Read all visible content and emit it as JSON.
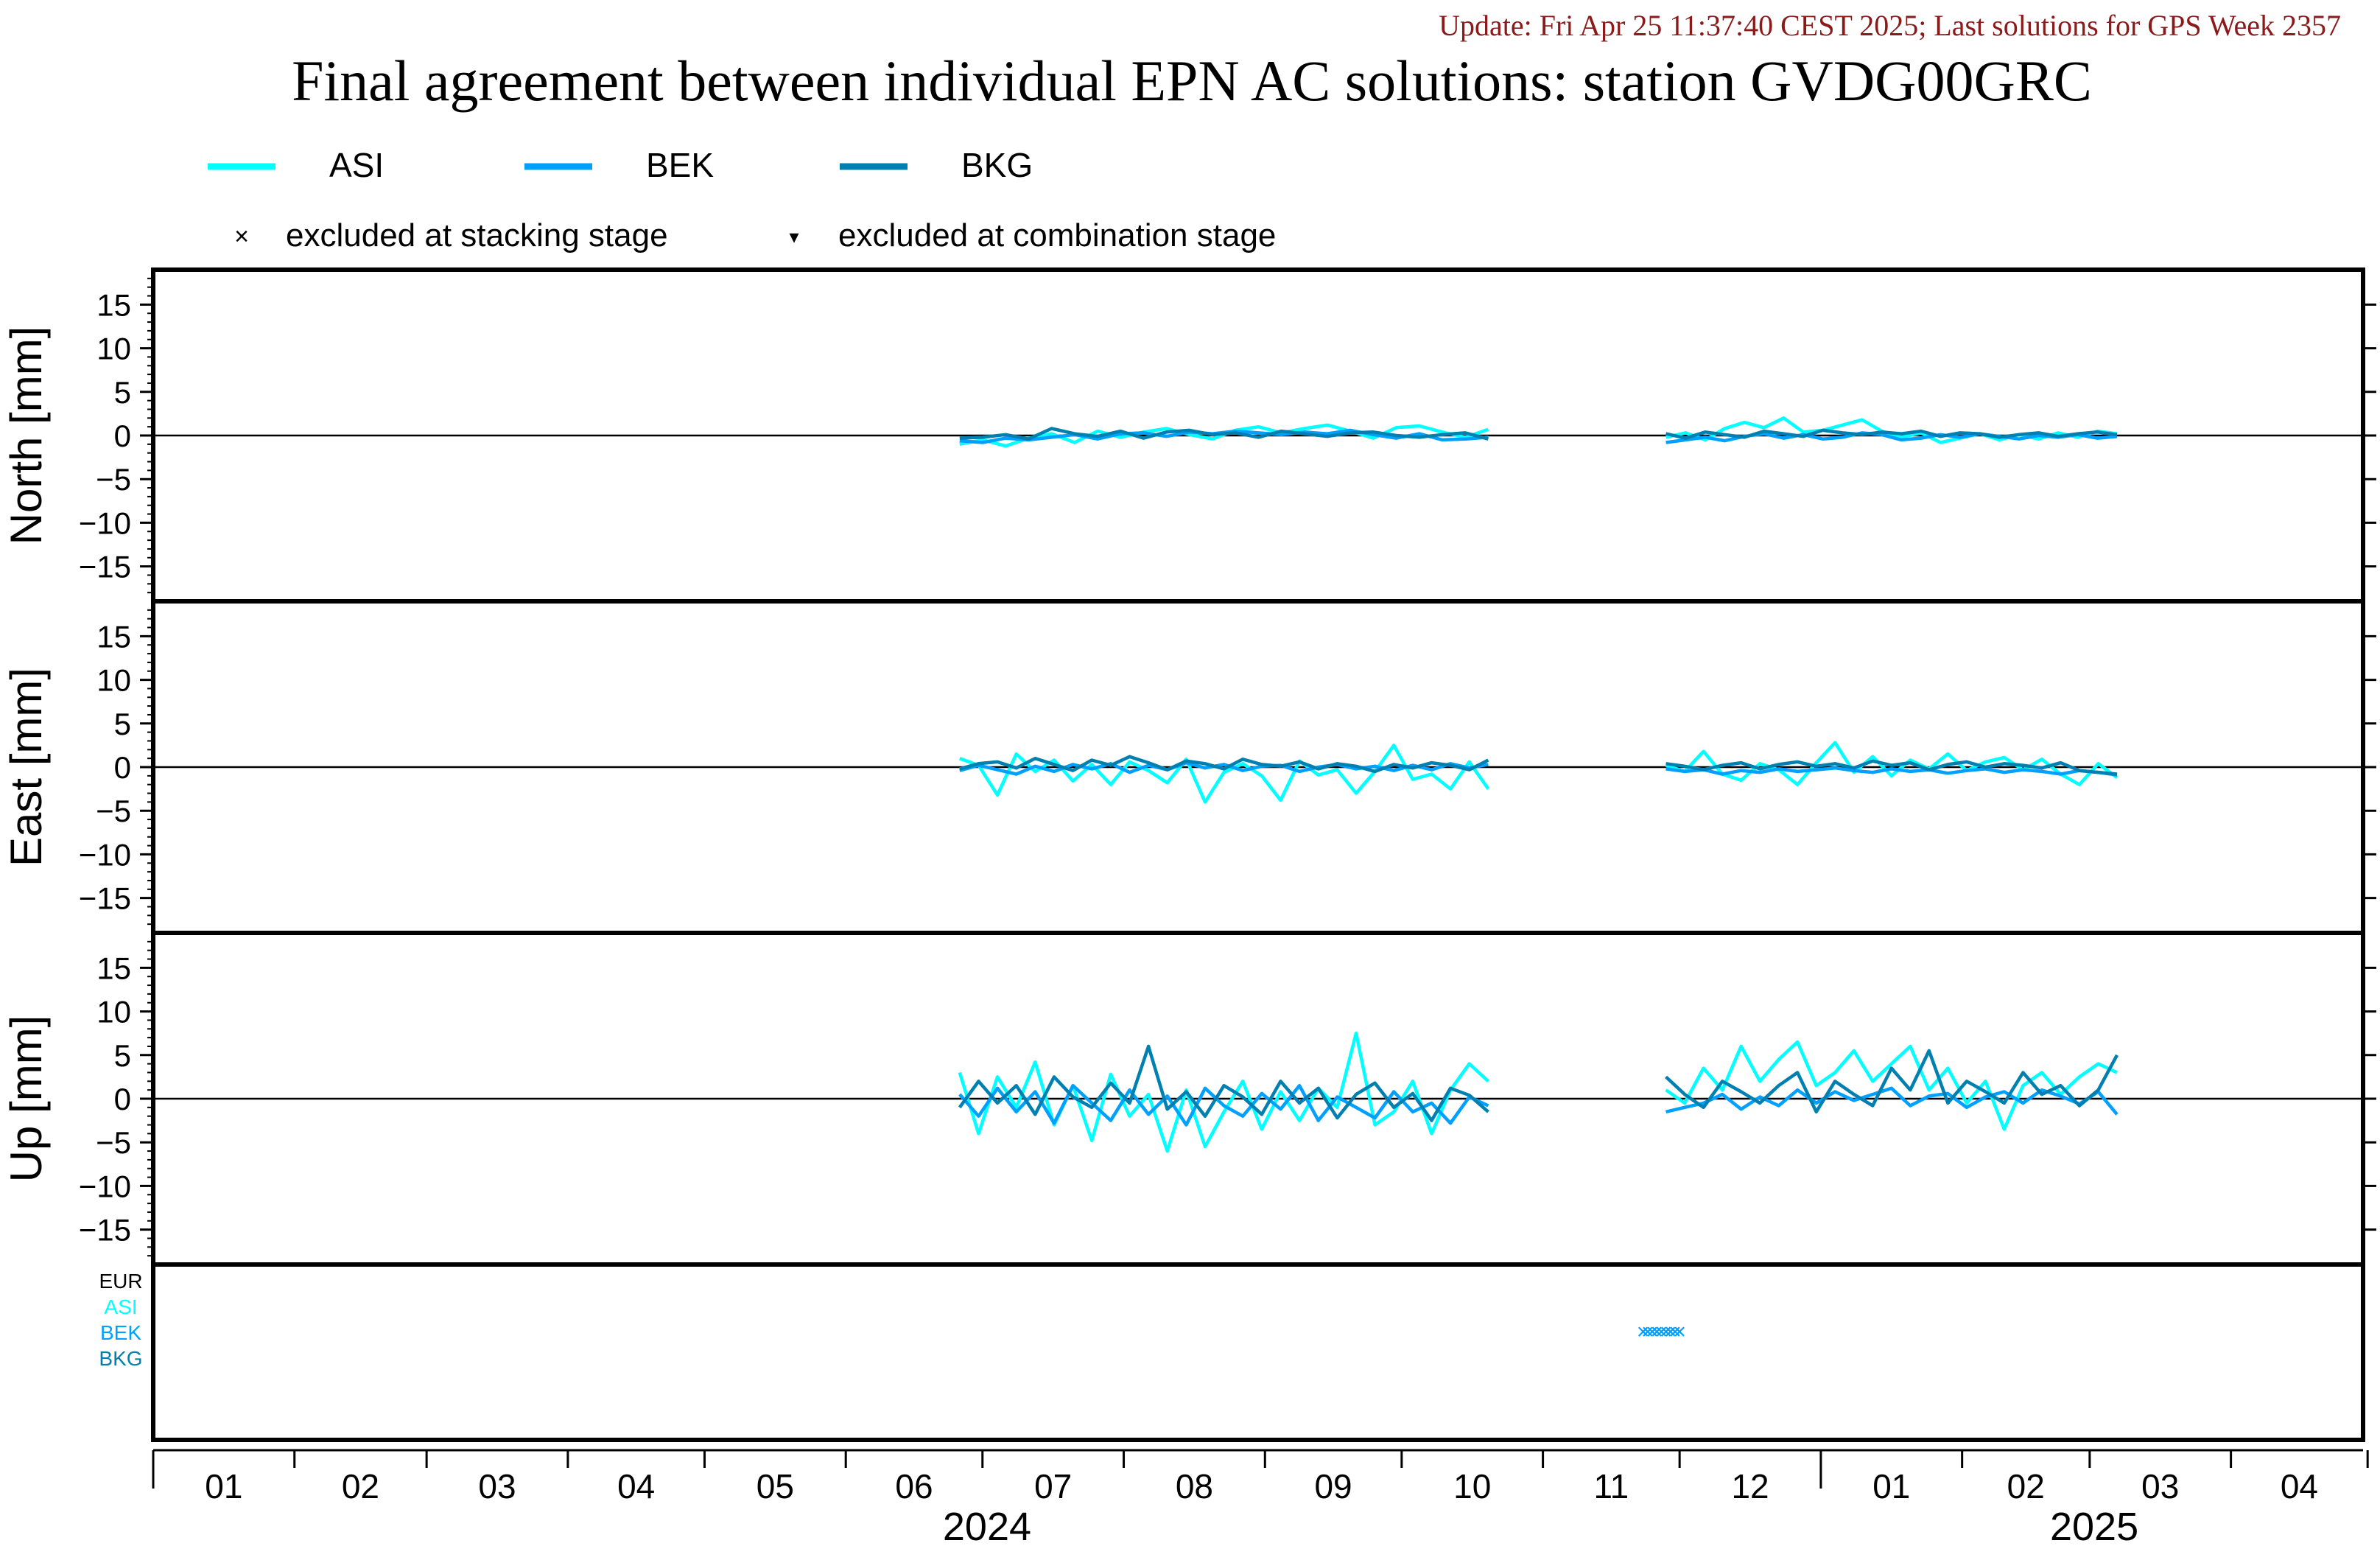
{
  "header": {
    "update_text": "Update: Fri Apr 25 11:37:40 CEST 2025; Last solutions for GPS Week 2357",
    "title": "Final agreement between individual EPN AC solutions: station GVDG00GRC"
  },
  "legend": {
    "series": [
      {
        "name": "ASI",
        "color": "#00ffff"
      },
      {
        "name": "BEK",
        "color": "#00a0ff"
      },
      {
        "name": "BKG",
        "color": "#0080b0"
      }
    ],
    "markers": [
      {
        "symbol": "×",
        "label": "excluded at stacking stage"
      },
      {
        "symbol": "▾",
        "label": "excluded at combination stage"
      }
    ]
  },
  "colors": {
    "ASI": "#00ffff",
    "BEK": "#00a0ff",
    "BKG": "#0080b0",
    "EUR": "#000000",
    "update": "#8b1a1a"
  },
  "chart_data": {
    "type": "line",
    "x_unit": "month",
    "x_range": [
      "2024-01",
      "2025-04"
    ],
    "month_ticks": [
      "01",
      "02",
      "03",
      "04",
      "05",
      "06",
      "07",
      "08",
      "09",
      "10",
      "11",
      "12",
      "01",
      "02",
      "03",
      "04"
    ],
    "year_labels": [
      "2024",
      "2025"
    ],
    "panels": [
      {
        "ylabel": "North [mm]",
        "ylim": [
          -19,
          19
        ],
        "yticks": [
          15,
          10,
          5,
          0,
          -5,
          -10,
          -15
        ],
        "segments": [
          {
            "start": "2024-06-26",
            "end": "2024-10-20",
            "series": [
              {
                "name": "ASI",
                "values": [
                  -1.0,
                  -0.5,
                  -1.2,
                  -0.3,
                  0.2,
                  -0.8,
                  0.5,
                  -0.2,
                  0.4,
                  0.8,
                  0.1,
                  -0.4,
                  0.6,
                  1.0,
                  0.3,
                  0.8,
                  1.2,
                  0.5,
                  -0.3,
                  0.9,
                  1.1,
                  0.4,
                  -0.2,
                  0.7
                ]
              },
              {
                "name": "BEK",
                "values": [
                  -0.6,
                  -0.8,
                  -0.3,
                  -0.5,
                  -0.2,
                  0.1,
                  -0.4,
                  0.2,
                  0.3,
                  -0.1,
                  0.4,
                  0.2,
                  0.5,
                  0.3,
                  0.1,
                  0.4,
                  0.2,
                  0.6,
                  0.1,
                  -0.3,
                  0.2,
                  -0.5,
                  -0.4,
                  -0.2
                ]
              },
              {
                "name": "BKG",
                "values": [
                  -0.3,
                  -0.2,
                  0.1,
                  -0.4,
                  0.8,
                  0.2,
                  -0.1,
                  0.5,
                  -0.3,
                  0.4,
                  0.6,
                  0.1,
                  0.3,
                  -0.2,
                  0.5,
                  0.2,
                  -0.1,
                  0.3,
                  0.4,
                  0.0,
                  -0.2,
                  0.1,
                  0.3,
                  -0.4
                ]
              }
            ]
          },
          {
            "start": "2024-11-28",
            "end": "2025-03-07",
            "series": [
              {
                "name": "ASI",
                "values": [
                  -0.2,
                  0.3,
                  -0.5,
                  0.8,
                  1.5,
                  0.9,
                  2.0,
                  0.4,
                  0.6,
                  1.2,
                  1.8,
                  0.5,
                  -0.2,
                  0.3,
                  -0.8,
                  -0.3,
                  0.2,
                  -0.5,
                  0.1,
                  -0.4,
                  0.3,
                  -0.2,
                  0.5,
                  0.2
                ]
              },
              {
                "name": "BEK",
                "values": [
                  -0.8,
                  -0.5,
                  -0.2,
                  -0.6,
                  -0.1,
                  0.2,
                  -0.3,
                  0.1,
                  -0.4,
                  -0.2,
                  0.3,
                  0.1,
                  -0.5,
                  -0.3,
                  0.1,
                  -0.2,
                  0.2,
                  -0.1,
                  -0.4,
                  0.0,
                  -0.2,
                  0.1,
                  -0.3,
                  -0.1
                ]
              },
              {
                "name": "BKG",
                "values": [
                  0.2,
                  -0.3,
                  0.4,
                  0.1,
                  -0.2,
                  0.5,
                  0.2,
                  -0.1,
                  0.6,
                  0.3,
                  0.1,
                  0.4,
                  0.2,
                  0.5,
                  -0.1,
                  0.3,
                  0.2,
                  -0.2,
                  0.1,
                  0.3,
                  -0.1,
                  0.2,
                  0.4,
                  0.1
                ]
              }
            ]
          }
        ]
      },
      {
        "ylabel": "East [mm]",
        "ylim": [
          -19,
          19
        ],
        "yticks": [
          15,
          10,
          5,
          0,
          -5,
          -10,
          -15
        ],
        "segments": [
          {
            "start": "2024-06-26",
            "end": "2024-10-20",
            "series": [
              {
                "name": "ASI",
                "values": [
                  1.0,
                  0.2,
                  -3.2,
                  1.5,
                  -0.5,
                  0.8,
                  -1.6,
                  0.3,
                  -2.0,
                  0.6,
                  -0.4,
                  -1.8,
                  0.9,
                  -4.0,
                  -0.6,
                  0.4,
                  -1.0,
                  -3.8,
                  0.7,
                  -0.9,
                  -0.3,
                  -3.0,
                  -0.5,
                  2.5,
                  -1.4,
                  -0.8,
                  -2.5,
                  0.6,
                  -2.5
                ]
              },
              {
                "name": "BEK",
                "values": [
                  -0.4,
                  0.2,
                  -0.3,
                  -0.8,
                  0.1,
                  -0.5,
                  0.3,
                  -0.2,
                  0.4,
                  -0.6,
                  0.2,
                  -0.3,
                  0.5,
                  -0.1,
                  0.3,
                  -0.4,
                  0.1,
                  0.2,
                  -0.5,
                  0.0,
                  0.3,
                  -0.2,
                  0.1,
                  -0.4,
                  0.2,
                  -0.3,
                  0.4,
                  -0.1,
                  0.3
                ]
              },
              {
                "name": "BKG",
                "values": [
                  -0.2,
                  0.4,
                  0.6,
                  -0.1,
                  1.0,
                  0.3,
                  -0.4,
                  0.8,
                  0.2,
                  1.2,
                  0.5,
                  -0.3,
                  0.7,
                  0.4,
                  -0.2,
                  0.9,
                  0.3,
                  0.1,
                  0.6,
                  -0.2,
                  0.4,
                  0.1,
                  -0.5,
                  0.3,
                  -0.1,
                  0.5,
                  0.2,
                  -0.3,
                  0.8
                ]
              }
            ]
          },
          {
            "start": "2024-11-28",
            "end": "2025-03-07",
            "series": [
              {
                "name": "ASI",
                "values": [
                  0.2,
                  -0.5,
                  1.8,
                  -0.8,
                  -1.5,
                  0.4,
                  -0.3,
                  -2.0,
                  0.5,
                  2.8,
                  -0.6,
                  1.2,
                  -1.0,
                  0.8,
                  -0.2,
                  1.5,
                  -0.4,
                  0.6,
                  1.1,
                  -0.3,
                  0.9,
                  -0.8,
                  -2.0,
                  0.4,
                  -1.2
                ]
              },
              {
                "name": "BEK",
                "values": [
                  -0.2,
                  -0.5,
                  -0.3,
                  -0.8,
                  -0.4,
                  -0.6,
                  -0.2,
                  -0.5,
                  -0.3,
                  -0.1,
                  -0.4,
                  -0.6,
                  -0.2,
                  -0.5,
                  -0.3,
                  -0.7,
                  -0.4,
                  -0.2,
                  -0.6,
                  -0.3,
                  -0.5,
                  -0.8,
                  -0.4,
                  -0.6,
                  -0.9
                ]
              },
              {
                "name": "BKG",
                "values": [
                  0.4,
                  0.1,
                  -0.3,
                  0.2,
                  0.5,
                  -0.2,
                  0.3,
                  0.6,
                  0.1,
                  0.4,
                  -0.1,
                  0.7,
                  0.2,
                  0.5,
                  -0.3,
                  0.3,
                  0.6,
                  0.0,
                  0.4,
                  0.2,
                  -0.1,
                  0.5,
                  -0.4,
                  -0.6,
                  -0.8
                ]
              }
            ]
          }
        ]
      },
      {
        "ylabel": "Up [mm]",
        "ylim": [
          -19,
          19
        ],
        "yticks": [
          15,
          10,
          5,
          0,
          -5,
          -10,
          -15
        ],
        "segments": [
          {
            "start": "2024-06-26",
            "end": "2024-10-20",
            "series": [
              {
                "name": "ASI",
                "values": [
                  3.0,
                  -4.0,
                  2.5,
                  -1.0,
                  4.2,
                  -3.0,
                  1.5,
                  -4.8,
                  2.8,
                  -2.0,
                  0.5,
                  -6.0,
                  1.0,
                  -5.5,
                  -1.5,
                  2.0,
                  -3.5,
                  0.8,
                  -2.5,
                  1.2,
                  -1.0,
                  7.5,
                  -3.0,
                  -1.5,
                  2.0,
                  -4.0,
                  1.0,
                  4.0,
                  2.0
                ]
              },
              {
                "name": "BEK",
                "values": [
                  0.5,
                  -2.0,
                  1.2,
                  -1.5,
                  0.8,
                  -2.8,
                  1.5,
                  -0.5,
                  -2.5,
                  1.0,
                  -1.8,
                  0.3,
                  -3.0,
                  1.2,
                  -0.8,
                  -2.0,
                  0.6,
                  -1.2,
                  1.5,
                  -2.5,
                  0.2,
                  -1.0,
                  -2.2,
                  0.8,
                  -1.5,
                  -0.5,
                  -2.8,
                  0.2,
                  -0.8
                ]
              },
              {
                "name": "BKG",
                "values": [
                  -1.0,
                  2.0,
                  -0.5,
                  1.5,
                  -1.8,
                  2.5,
                  0.2,
                  -1.0,
                  1.8,
                  -0.5,
                  6.0,
                  -1.2,
                  0.8,
                  -2.0,
                  1.5,
                  0.2,
                  -1.8,
                  2.0,
                  -0.5,
                  1.2,
                  -2.2,
                  0.5,
                  1.8,
                  -1.0,
                  0.6,
                  -2.5,
                  1.2,
                  0.4,
                  -1.5
                ]
              }
            ]
          },
          {
            "start": "2024-11-28",
            "end": "2025-03-07",
            "series": [
              {
                "name": "ASI",
                "values": [
                  1.0,
                  -0.5,
                  3.5,
                  1.0,
                  6.0,
                  2.0,
                  4.5,
                  6.5,
                  1.5,
                  3.0,
                  5.5,
                  2.0,
                  4.0,
                  6.0,
                  1.0,
                  3.5,
                  -0.5,
                  2.0,
                  -3.5,
                  1.5,
                  3.0,
                  0.5,
                  2.5,
                  4.0,
                  3.0
                ]
              },
              {
                "name": "BEK",
                "values": [
                  -1.5,
                  -1.0,
                  -0.5,
                  0.5,
                  -1.2,
                  0.2,
                  -0.8,
                  1.0,
                  -0.5,
                  0.8,
                  -0.2,
                  0.5,
                  1.2,
                  -0.8,
                  0.3,
                  0.6,
                  -1.0,
                  0.2,
                  0.8,
                  -0.5,
                  1.0,
                  0.3,
                  -0.6,
                  0.8,
                  -1.8
                ]
              },
              {
                "name": "BKG",
                "values": [
                  2.5,
                  0.5,
                  -1.0,
                  2.0,
                  0.8,
                  -0.5,
                  1.5,
                  3.0,
                  -1.5,
                  2.0,
                  0.5,
                  -0.8,
                  3.5,
                  1.0,
                  5.5,
                  -0.5,
                  2.0,
                  0.8,
                  -0.5,
                  3.0,
                  0.5,
                  1.5,
                  -0.8,
                  1.0,
                  5.0
                ]
              }
            ]
          }
        ]
      }
    ],
    "exclusion_panel": {
      "labels": [
        "EUR",
        "ASI",
        "BEK",
        "BKG"
      ],
      "stacking_exclusions": [
        {
          "series": "BEK",
          "dates": [
            "2024-11-23",
            "2024-11-24",
            "2024-11-25",
            "2024-11-26",
            "2024-11-27",
            "2024-11-28",
            "2024-11-29",
            "2024-11-30",
            "2024-12-01"
          ]
        }
      ]
    }
  }
}
